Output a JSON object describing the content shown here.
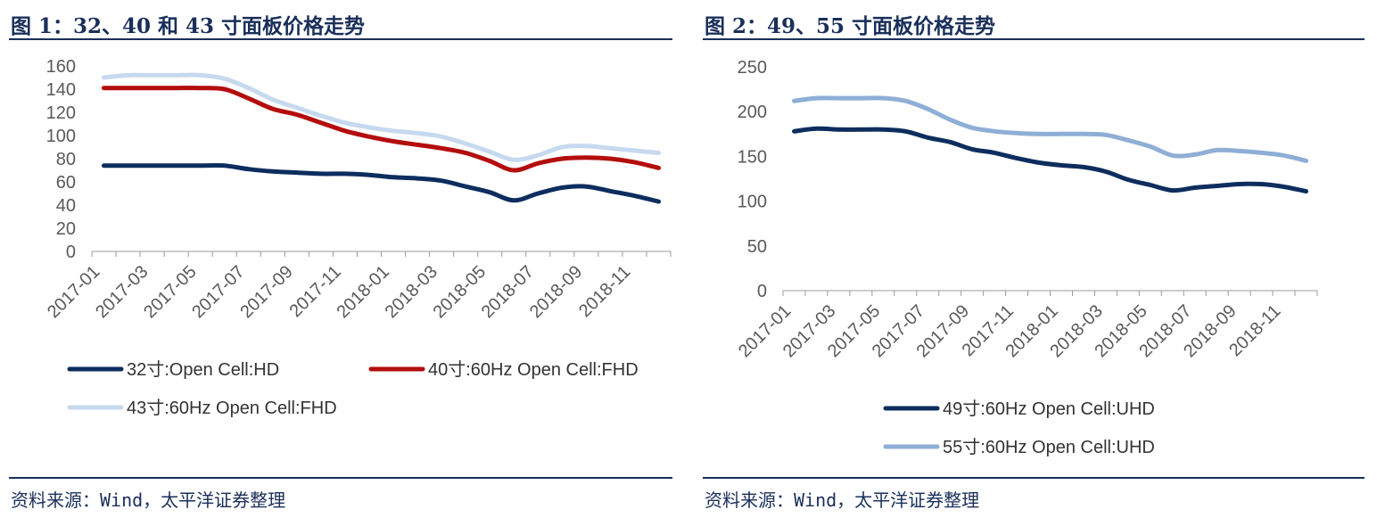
{
  "figures": [
    {
      "title": "图 1：32、40 和 43 寸面板价格走势",
      "source": "资料来源：Wind，太平洋证券整理"
    },
    {
      "title": "图 2：49、55 寸面板价格走势",
      "source": "资料来源：Wind，太平洋证券整理"
    }
  ],
  "chart_data": [
    {
      "type": "line",
      "title": "图 1：32、40 和 43 寸面板价格走势",
      "xlabel": "",
      "ylabel": "",
      "ylim": [
        0,
        160
      ],
      "yticks": [
        0,
        20,
        40,
        60,
        80,
        100,
        120,
        140,
        160
      ],
      "x": [
        "2017-01",
        "2017-02",
        "2017-03",
        "2017-04",
        "2017-05",
        "2017-06",
        "2017-07",
        "2017-08",
        "2017-09",
        "2017-10",
        "2017-11",
        "2017-12",
        "2018-01",
        "2018-02",
        "2018-03",
        "2018-04",
        "2018-05",
        "2018-06",
        "2018-07",
        "2018-08",
        "2018-09",
        "2018-10",
        "2018-11",
        "2018-12"
      ],
      "xtick_labels": [
        "2017-01",
        "2017-03",
        "2017-05",
        "2017-07",
        "2017-09",
        "2017-11",
        "2018-01",
        "2018-03",
        "2018-05",
        "2018-07",
        "2018-09",
        "2018-11"
      ],
      "grid": false,
      "legend_position": "bottom",
      "series": [
        {
          "name": "32寸:Open Cell:HD",
          "color": "#0d2d5e",
          "values": [
            74,
            74,
            74,
            74,
            74,
            74,
            71,
            69,
            68,
            67,
            67,
            66,
            64,
            63,
            61,
            56,
            51,
            44,
            50,
            55,
            56,
            52,
            48,
            43
          ]
        },
        {
          "name": "40寸:60Hz Open Cell:FHD",
          "color": "#b40d0d",
          "values": [
            141,
            141,
            141,
            141,
            141,
            140,
            132,
            123,
            118,
            111,
            104,
            99,
            95,
            92,
            89,
            85,
            78,
            70,
            76,
            80,
            81,
            80,
            77,
            72
          ]
        },
        {
          "name": "43寸:60Hz Open Cell:FHD",
          "color": "#c6d9ef",
          "values": [
            150,
            152,
            152,
            152,
            152,
            149,
            141,
            131,
            124,
            117,
            111,
            107,
            104,
            102,
            99,
            93,
            86,
            79,
            83,
            90,
            91,
            89,
            87,
            85
          ]
        }
      ]
    },
    {
      "type": "line",
      "title": "图 2：49、55 寸面板价格走势",
      "xlabel": "",
      "ylabel": "",
      "ylim": [
        0,
        250
      ],
      "yticks": [
        0,
        50,
        100,
        150,
        200,
        250
      ],
      "x": [
        "2017-01",
        "2017-02",
        "2017-03",
        "2017-04",
        "2017-05",
        "2017-06",
        "2017-07",
        "2017-08",
        "2017-09",
        "2017-10",
        "2017-11",
        "2017-12",
        "2018-01",
        "2018-02",
        "2018-03",
        "2018-04",
        "2018-05",
        "2018-06",
        "2018-07",
        "2018-08",
        "2018-09",
        "2018-10",
        "2018-11",
        "2018-12"
      ],
      "xtick_labels": [
        "2017-01",
        "2017-03",
        "2017-05",
        "2017-07",
        "2017-09",
        "2017-11",
        "2018-01",
        "2018-03",
        "2018-05",
        "2018-07",
        "2018-09",
        "2018-11"
      ],
      "grid": false,
      "legend_position": "bottom",
      "series": [
        {
          "name": "49寸:60Hz Open Cell:UHD",
          "color": "#0d2d5e",
          "values": [
            178,
            181,
            180,
            180,
            180,
            178,
            171,
            166,
            158,
            154,
            148,
            143,
            140,
            138,
            133,
            124,
            118,
            112,
            115,
            117,
            119,
            119,
            116,
            111
          ]
        },
        {
          "name": "55寸:60Hz Open Cell:UHD",
          "color": "#8eaed6",
          "values": [
            212,
            215,
            215,
            215,
            215,
            212,
            203,
            191,
            182,
            178,
            176,
            175,
            175,
            175,
            174,
            168,
            161,
            151,
            152,
            157,
            156,
            154,
            151,
            145
          ]
        }
      ]
    }
  ]
}
